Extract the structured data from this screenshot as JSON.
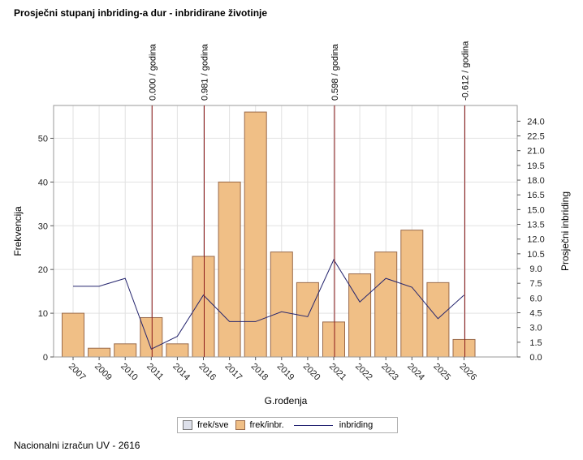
{
  "title": "Prosječni stupanj inbriding-a dur - inbridirane životinje",
  "footer": "Nacionalni izračun UV - 2616",
  "colors": {
    "bar_fill": "#f0bf86",
    "bar_stroke": "#9a6a4a",
    "line": "#25256e",
    "vline": "#8b1a1a",
    "grid": "#e2e2e2",
    "frek_sve": "#dde0ea"
  },
  "legend": {
    "frek_sve": "frek/sve",
    "frek_inbr": "frek/inbr.",
    "inbriding": "inbriding"
  },
  "chart_data": {
    "type": "bar",
    "categories": [
      "2007",
      "2009",
      "2010",
      "2011",
      "2014",
      "2016",
      "2017",
      "2018",
      "2019",
      "2020",
      "2021",
      "2022",
      "2023",
      "2024",
      "2025",
      "2026"
    ],
    "series": [
      {
        "name": "frek/inbr.",
        "axis": "left",
        "type": "bar",
        "values": [
          10,
          2,
          3,
          9,
          3,
          23,
          40,
          56,
          24,
          17,
          8,
          19,
          24,
          29,
          17,
          4
        ]
      },
      {
        "name": "inbriding",
        "axis": "right",
        "type": "line",
        "values": [
          7.2,
          7.2,
          8.0,
          0.8,
          2.1,
          6.3,
          3.6,
          3.6,
          4.6,
          4.1,
          9.9,
          5.6,
          8.0,
          7.1,
          3.9,
          6.3
        ]
      }
    ],
    "xlabel": "G.rođenja",
    "ylabel": "Frekvencija",
    "y2label": "Prosječni inbriding",
    "ylim": [
      0,
      57.5
    ],
    "y2lim": [
      0,
      25.6
    ],
    "yticks": [
      0,
      10,
      20,
      30,
      40,
      50
    ],
    "y2ticks": [
      "0.0",
      "1.5",
      "3.0",
      "4.5",
      "6.0",
      "7.5",
      "9.0",
      "10.5",
      "12.0",
      "13.5",
      "15.0",
      "16.5",
      "18.0",
      "19.5",
      "21.0",
      "22.5",
      "24.0"
    ],
    "annotations": [
      {
        "category": "2011",
        "label": "0.000 / godina"
      },
      {
        "category": "2016",
        "label": "0.981 / godina"
      },
      {
        "category": "2021",
        "label": "0.598 / godina"
      },
      {
        "category": "2026",
        "label": "-0.612 / godina"
      }
    ],
    "grid": true,
    "legend_position": "bottom"
  }
}
